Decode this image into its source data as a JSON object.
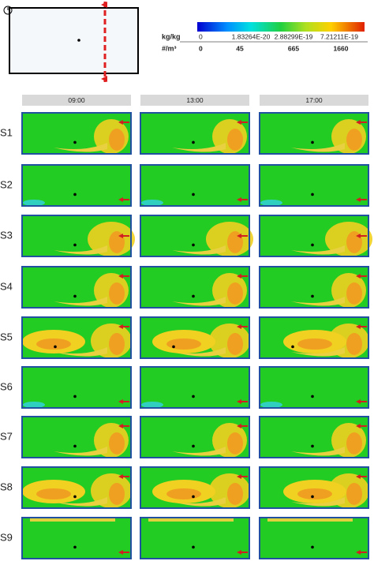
{
  "colorbar": {
    "unit_mass": "kg/kg",
    "unit_number": "#/m³",
    "mass_labels": [
      "0",
      "1.83264E-20",
      "2.88299E-19",
      "7.21211E-19"
    ],
    "number_labels": [
      "0",
      "45",
      "665",
      "1660"
    ]
  },
  "columns": [
    "09:00",
    "13:00",
    "17:00"
  ],
  "rows": [
    "S1",
    "S2",
    "S3",
    "S4",
    "S5",
    "S6",
    "S7",
    "S8",
    "S9"
  ]
}
